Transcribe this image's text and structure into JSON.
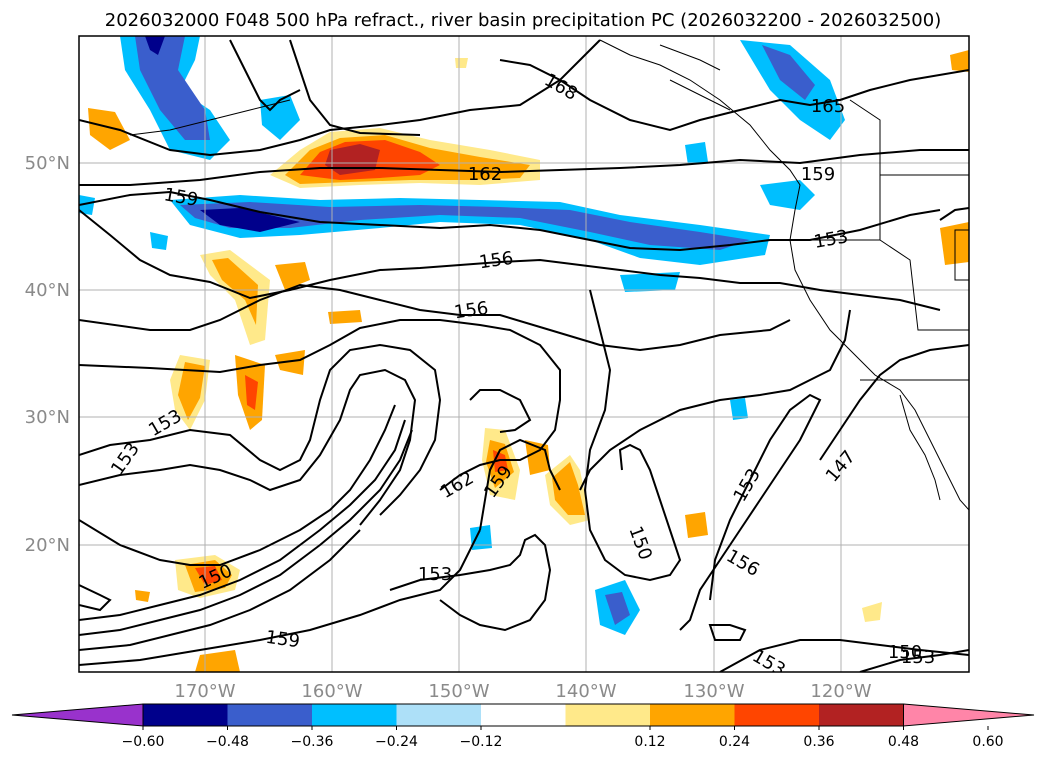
{
  "title": "2026032000 F048 500 hPa refract., river basin precipitation PC (2026032200 - 2026032500)",
  "map": {
    "lat_labels": [
      "50°N",
      "40°N",
      "30°N",
      "20°N"
    ],
    "lon_labels": [
      "170°W",
      "160°W",
      "150°W",
      "140°W",
      "130°W",
      "120°W"
    ],
    "contour_labels": [
      "168",
      "165",
      "162",
      "159",
      "159",
      "159",
      "156",
      "156",
      "153",
      "153",
      "153",
      "153",
      "153",
      "153",
      "150",
      "150",
      "150",
      "147",
      "156",
      "162",
      "159",
      "153"
    ],
    "colors": {
      "land_border": "#000000",
      "grid": "#b0b0b0"
    }
  },
  "colorbar": {
    "tick_labels": [
      "−0.60",
      "−0.48",
      "−0.36",
      "−0.24",
      "−0.12",
      "0.12",
      "0.24",
      "0.36",
      "0.48",
      "0.60"
    ],
    "segment_colors": [
      "#9932CC",
      "#00008B",
      "#3A5ECC",
      "#00BFFF",
      "#ADE0F8",
      "#FFFFFF",
      "#FFE98A",
      "#FFA500",
      "#FF4500",
      "#B22222",
      "#FF85A8"
    ]
  }
}
